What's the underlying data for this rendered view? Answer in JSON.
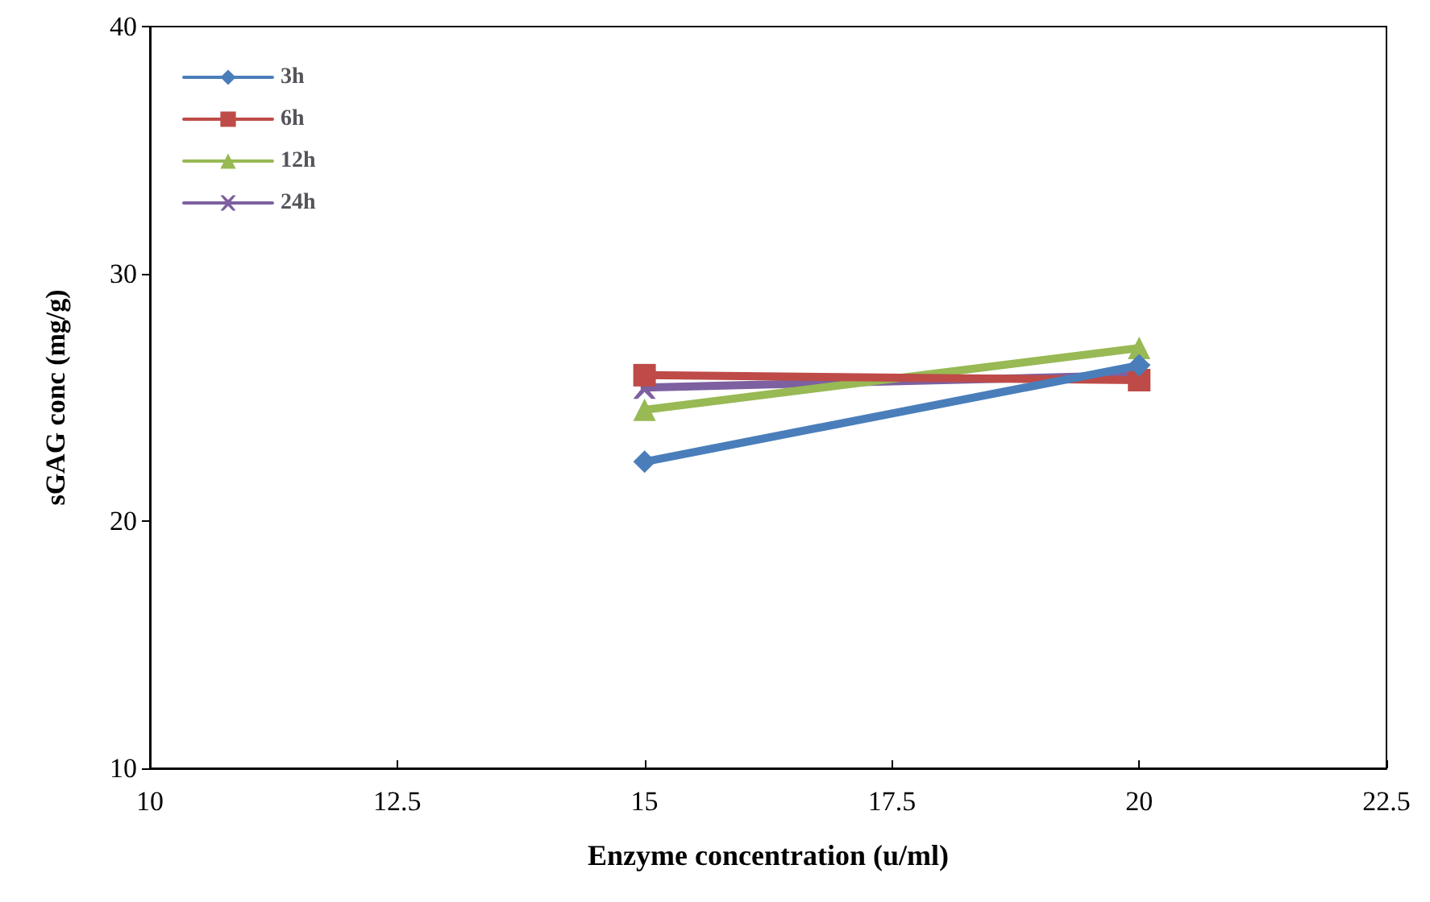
{
  "chart_data": {
    "type": "line",
    "xlabel": "Enzyme concentration (u/ml)",
    "ylabel": "sGAG conc (mg/g)",
    "x": [
      15,
      20
    ],
    "series": [
      {
        "name": "3h",
        "color": "#4a7ebb",
        "values": [
          22.4,
          26.3
        ],
        "marker": "diamond"
      },
      {
        "name": "6h",
        "color": "#be4b48",
        "values": [
          25.9,
          25.7
        ],
        "marker": "square"
      },
      {
        "name": "12h",
        "color": "#98b954",
        "values": [
          24.5,
          27.0
        ],
        "marker": "triangle"
      },
      {
        "name": "24h",
        "color": "#7d60a0",
        "values": [
          25.4,
          25.9
        ],
        "marker": "cross"
      }
    ],
    "xlim": [
      10,
      22.5
    ],
    "xticks": [
      10,
      12.5,
      15,
      17.5,
      20,
      22.5
    ],
    "ylim": [
      10,
      40
    ],
    "yticks": [
      10,
      20,
      30,
      40
    ],
    "grid": false,
    "legend": "top left"
  }
}
